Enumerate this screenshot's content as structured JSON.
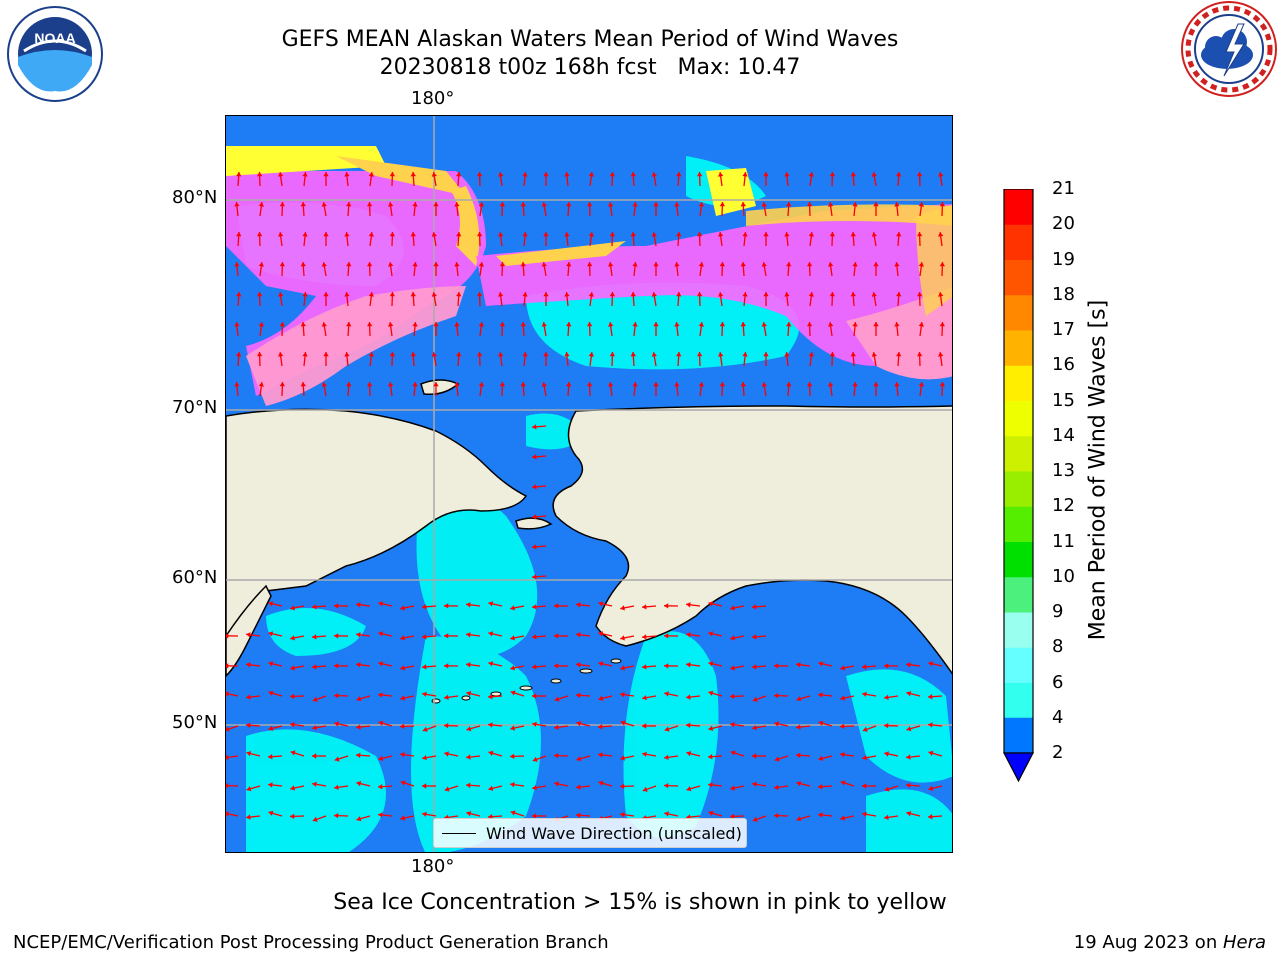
{
  "header": {
    "title_line1": "GEFS MEAN Alaskan Waters Mean Period of Wind Waves",
    "title_line2": "20230818 t00z 168h fcst   Max: 10.47"
  },
  "map": {
    "lon_label_top": "180°",
    "lon_label_bottom": "180°",
    "lat_labels": [
      "80°N",
      "70°N",
      "60°N",
      "50°N"
    ],
    "legend_text": "Wind Wave Direction (unscaled)",
    "land_color": "#efeddb",
    "ocean_color": "#1e7cf5",
    "arrow_color": "#ff0000",
    "ice_colors": [
      "#ff66ff",
      "#ff9ad0",
      "#ffd24d",
      "#ffff33"
    ]
  },
  "colorbar": {
    "label": "Mean Period of Wind Waves [s]",
    "ticks": [
      "2",
      "4",
      "6",
      "8",
      "9",
      "10",
      "11",
      "12",
      "13",
      "14",
      "15",
      "16",
      "17",
      "18",
      "19",
      "20",
      "21"
    ],
    "colors": [
      "#0077ff",
      "#00ffff",
      "#33ffee",
      "#66ffff",
      "#99ffee",
      "#4cf07c",
      "#00e000",
      "#55ee00",
      "#99ee00",
      "#ccf000",
      "#eeff00",
      "#ffee00",
      "#ffb300",
      "#ff8800",
      "#ff5500",
      "#ff3300",
      "#ff0000"
    ],
    "under_color": "#0000ff"
  },
  "caption": "Sea Ice Concentration > 15% is shown in pink to yellow",
  "footer": {
    "left": "NCEP/EMC/Verification Post Processing Product Generation Branch",
    "right_date": "19 Aug 2023 on ",
    "right_machine": "Hera"
  },
  "logos": {
    "noaa_text": "NOAA",
    "nws_text": "NATIONAL WEATHER SERVICE"
  }
}
